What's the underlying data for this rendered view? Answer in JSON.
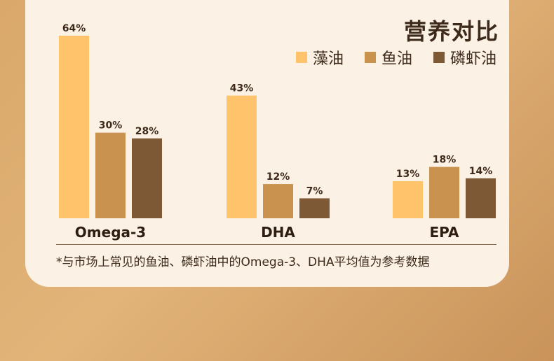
{
  "chart_data": {
    "type": "bar",
    "title": "营养对比",
    "categories": [
      "Omega-3",
      "DHA",
      "EPA"
    ],
    "series": [
      {
        "name": "藻油",
        "values": [
          64,
          43,
          13
        ],
        "color": "#ffc36b"
      },
      {
        "name": "鱼油",
        "values": [
          30,
          12,
          18
        ],
        "color": "#c9924f"
      },
      {
        "name": "磷虾油",
        "values": [
          28,
          7,
          14
        ],
        "color": "#7d5a35"
      }
    ],
    "value_suffix": "%",
    "ylim": [
      0,
      64
    ],
    "grid": false,
    "legend": "top-right"
  },
  "footnote": "*与市场上常见的鱼油、磷虾油中的Omega-3、DHA平均值为参考数据"
}
